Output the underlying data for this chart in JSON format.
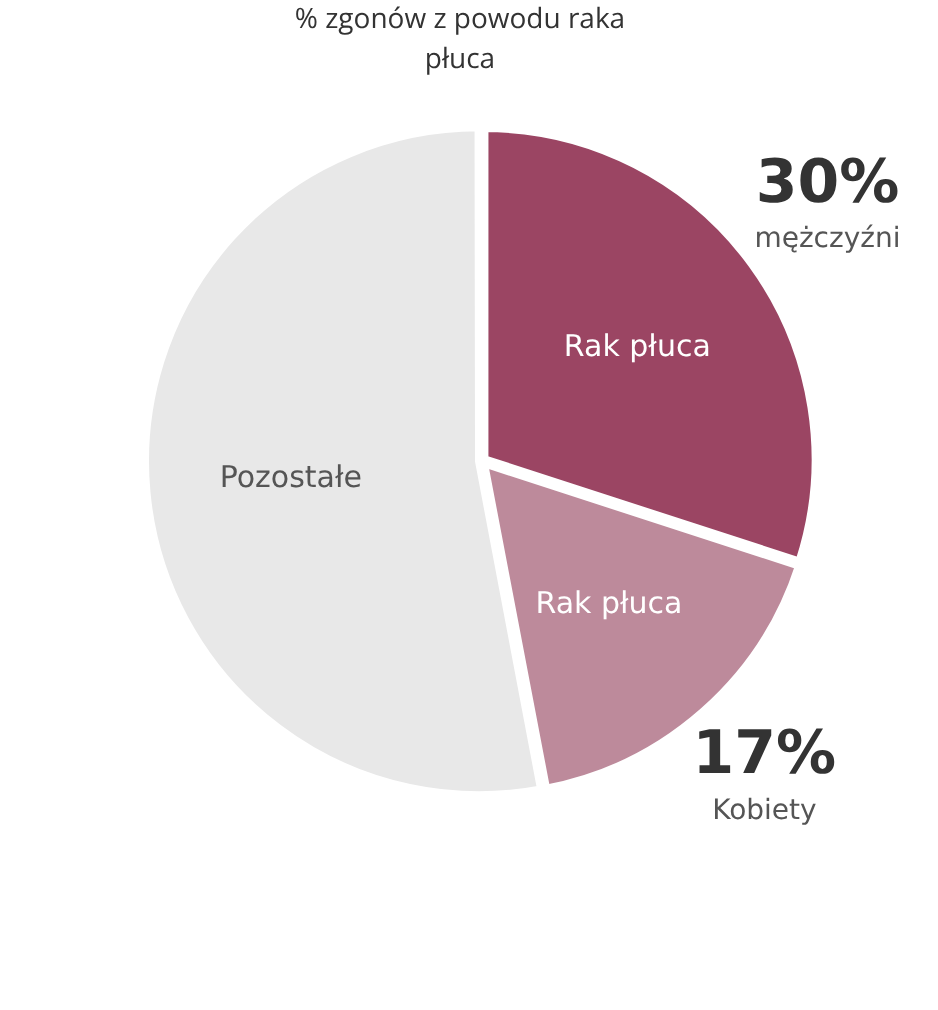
{
  "chart_data": {
    "type": "pie",
    "title": "% zgonów z powodu raka płuca",
    "categories": [
      "Rak płuca",
      "Rak płuca",
      "Pozostałe"
    ],
    "values": [
      30,
      17,
      53
    ],
    "colors": [
      "#9b4563",
      "#bd8a9b",
      "#e8e8e8"
    ],
    "value_labels": [
      "30%",
      "17%",
      null
    ],
    "annotations": [
      "mężczyźni",
      "Kobiety"
    ],
    "legend": false
  }
}
